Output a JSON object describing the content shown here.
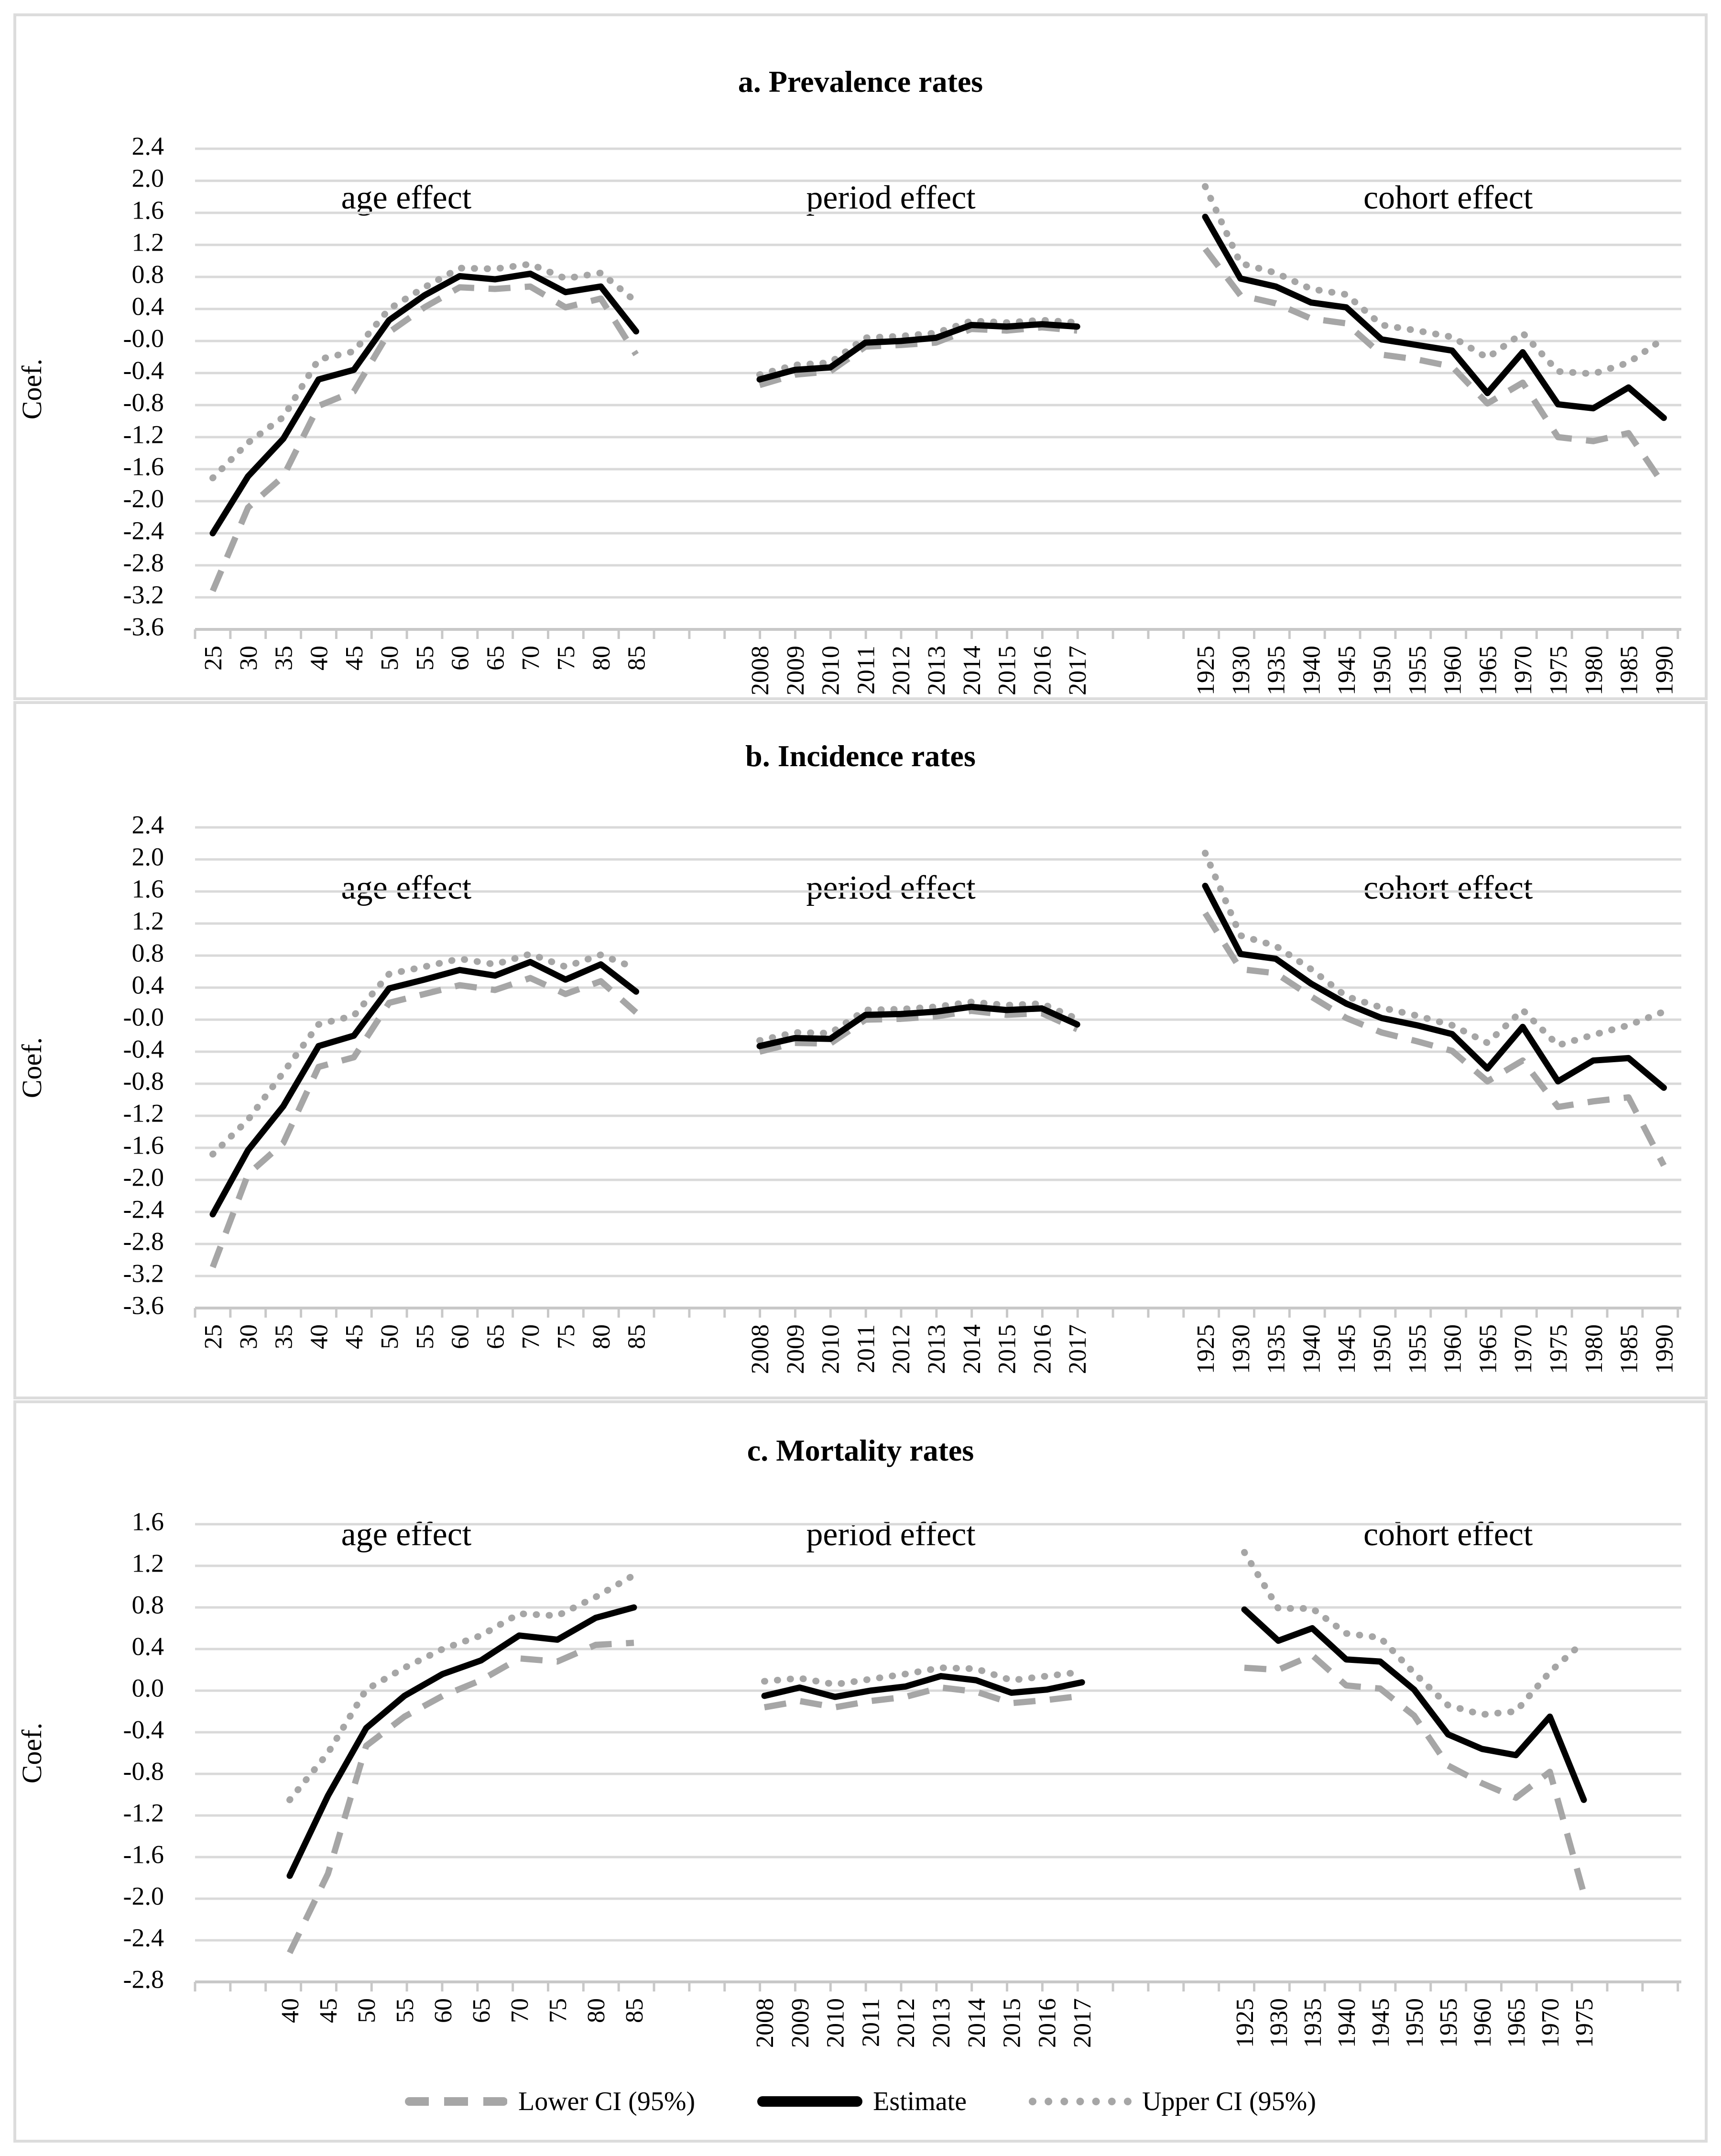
{
  "axis": {
    "ylabel": "Coef."
  },
  "colors": {
    "estimate": "#000000",
    "ci": "#a6a6a6",
    "gridline": "#d9d9d9",
    "axis_line": "#c8c8c8",
    "panel_border": "#dcdcdc",
    "background": "#ffffff"
  },
  "legend": {
    "items": [
      {
        "label": "Lower CI (95%)",
        "style": "dashed",
        "color": "#a6a6a6"
      },
      {
        "label": "Estimate",
        "style": "solid",
        "color": "#000000"
      },
      {
        "label": "Upper CI (95%)",
        "style": "dotted",
        "color": "#a6a6a6"
      }
    ]
  },
  "chart_data": [
    {
      "type": "line",
      "title": "a. Prevalence rates",
      "ylabel": "Coef.",
      "ylim": [
        -3.6,
        2.4
      ],
      "ytick_step": 0.4,
      "grid": "horizontal",
      "legend_position": "none",
      "groups": [
        {
          "label": "age effect",
          "categories": [
            25,
            30,
            35,
            40,
            45,
            50,
            55,
            60,
            65,
            70,
            75,
            80,
            85
          ],
          "series": [
            {
              "name": "Lower CI (95%)",
              "values": [
                -3.12,
                -2.08,
                -1.69,
                -0.81,
                -0.63,
                0.11,
                0.42,
                0.67,
                0.65,
                0.68,
                0.42,
                0.53,
                -0.17
              ]
            },
            {
              "name": "Estimate",
              "values": [
                -2.4,
                -1.69,
                -1.22,
                -0.48,
                -0.36,
                0.26,
                0.57,
                0.81,
                0.77,
                0.84,
                0.61,
                0.68,
                0.12
              ]
            },
            {
              "name": "Upper CI (95%)",
              "values": [
                -1.71,
                -1.27,
                -0.95,
                -0.23,
                -0.13,
                0.4,
                0.67,
                0.91,
                0.9,
                0.96,
                0.78,
                0.85,
                0.49
              ]
            }
          ]
        },
        {
          "label": "period effect",
          "categories": [
            2008,
            2009,
            2010,
            2011,
            2012,
            2013,
            2014,
            2015,
            2016,
            2017
          ],
          "series": [
            {
              "name": "Lower CI (95%)",
              "values": [
                -0.55,
                -0.42,
                -0.38,
                -0.07,
                -0.05,
                -0.02,
                0.15,
                0.13,
                0.17,
                0.13
              ]
            },
            {
              "name": "Estimate",
              "values": [
                -0.48,
                -0.36,
                -0.33,
                -0.02,
                0.0,
                0.04,
                0.2,
                0.18,
                0.21,
                0.18
              ]
            },
            {
              "name": "Upper CI (95%)",
              "values": [
                -0.42,
                -0.3,
                -0.27,
                0.04,
                0.06,
                0.1,
                0.25,
                0.23,
                0.26,
                0.23
              ]
            }
          ]
        },
        {
          "label": "cohort effect",
          "categories": [
            1925,
            1930,
            1935,
            1940,
            1945,
            1950,
            1955,
            1960,
            1965,
            1970,
            1975,
            1980,
            1985,
            1990
          ],
          "series": [
            {
              "name": "Lower CI (95%)",
              "values": [
                1.15,
                0.57,
                0.47,
                0.28,
                0.22,
                -0.17,
                -0.23,
                -0.32,
                -0.78,
                -0.52,
                -1.2,
                -1.25,
                -1.15,
                -1.8
              ]
            },
            {
              "name": "Estimate",
              "values": [
                1.55,
                0.78,
                0.68,
                0.48,
                0.42,
                0.02,
                -0.05,
                -0.12,
                -0.65,
                -0.14,
                -0.79,
                -0.84,
                -0.58,
                -0.96
              ]
            },
            {
              "name": "Upper CI (95%)",
              "values": [
                1.93,
                0.97,
                0.85,
                0.65,
                0.58,
                0.2,
                0.13,
                0.05,
                -0.21,
                0.1,
                -0.38,
                -0.41,
                -0.27,
                0.03
              ]
            }
          ]
        }
      ]
    },
    {
      "type": "line",
      "title": "b. Incidence rates",
      "ylabel": "Coef.",
      "ylim": [
        -3.6,
        2.4
      ],
      "ytick_step": 0.4,
      "grid": "horizontal",
      "legend_position": "none",
      "groups": [
        {
          "label": "age effect",
          "categories": [
            25,
            30,
            35,
            40,
            45,
            50,
            55,
            60,
            65,
            70,
            75,
            80,
            85
          ],
          "series": [
            {
              "name": "Lower CI (95%)",
              "values": [
                -3.09,
                -1.93,
                -1.54,
                -0.59,
                -0.47,
                0.21,
                0.32,
                0.43,
                0.37,
                0.52,
                0.32,
                0.48,
                0.09
              ]
            },
            {
              "name": "Estimate",
              "values": [
                -2.43,
                -1.63,
                -1.08,
                -0.33,
                -0.2,
                0.39,
                0.5,
                0.62,
                0.55,
                0.72,
                0.5,
                0.69,
                0.35
              ]
            },
            {
              "name": "Upper CI (95%)",
              "values": [
                -1.68,
                -1.25,
                -0.66,
                -0.06,
                0.05,
                0.57,
                0.66,
                0.76,
                0.69,
                0.82,
                0.66,
                0.81,
                0.64
              ]
            }
          ]
        },
        {
          "label": "period effect",
          "categories": [
            2008,
            2009,
            2010,
            2011,
            2012,
            2013,
            2014,
            2015,
            2016,
            2017
          ],
          "series": [
            {
              "name": "Lower CI (95%)",
              "values": [
                -0.4,
                -0.29,
                -0.3,
                0.0,
                0.01,
                0.04,
                0.11,
                0.06,
                0.08,
                -0.12
              ]
            },
            {
              "name": "Estimate",
              "values": [
                -0.33,
                -0.23,
                -0.24,
                0.06,
                0.07,
                0.1,
                0.16,
                0.12,
                0.14,
                -0.06
              ]
            },
            {
              "name": "Upper CI (95%)",
              "values": [
                -0.26,
                -0.16,
                -0.17,
                0.12,
                0.13,
                0.16,
                0.22,
                0.18,
                0.2,
                0.01
              ]
            }
          ]
        },
        {
          "label": "cohort effect",
          "categories": [
            1925,
            1930,
            1935,
            1940,
            1945,
            1950,
            1955,
            1960,
            1965,
            1970,
            1975,
            1980,
            1985,
            1990
          ],
          "series": [
            {
              "name": "Lower CI (95%)",
              "values": [
                1.33,
                0.63,
                0.58,
                0.29,
                0.02,
                -0.16,
                -0.27,
                -0.39,
                -0.77,
                -0.51,
                -1.09,
                -1.02,
                -0.97,
                -1.82
              ]
            },
            {
              "name": "Estimate",
              "values": [
                1.67,
                0.82,
                0.76,
                0.45,
                0.2,
                0.02,
                -0.07,
                -0.18,
                -0.61,
                -0.09,
                -0.77,
                -0.51,
                -0.48,
                -0.85
              ]
            },
            {
              "name": "Upper CI (95%)",
              "values": [
                2.08,
                1.05,
                0.92,
                0.63,
                0.29,
                0.15,
                0.05,
                -0.07,
                -0.29,
                0.12,
                -0.32,
                -0.19,
                -0.07,
                0.1
              ]
            }
          ]
        }
      ]
    },
    {
      "type": "line",
      "title": "c. Mortality rates",
      "ylabel": "Coef.",
      "ylim": [
        -2.8,
        1.6
      ],
      "ytick_step": 0.4,
      "grid": "horizontal",
      "legend_position": "bottom",
      "groups": [
        {
          "label": "age effect",
          "categories": [
            40,
            45,
            50,
            55,
            60,
            65,
            70,
            75,
            80,
            85
          ],
          "series": [
            {
              "name": "Lower CI (95%)",
              "values": [
                -2.52,
                -1.76,
                -0.53,
                -0.25,
                -0.05,
                0.1,
                0.31,
                0.28,
                0.44,
                0.46
              ]
            },
            {
              "name": "Estimate",
              "values": [
                -1.78,
                -1.01,
                -0.36,
                -0.05,
                0.16,
                0.29,
                0.53,
                0.49,
                0.7,
                0.8
              ]
            },
            {
              "name": "Upper CI (95%)",
              "values": [
                -1.05,
                -0.6,
                0.01,
                0.22,
                0.4,
                0.53,
                0.74,
                0.72,
                0.9,
                1.11
              ]
            }
          ]
        },
        {
          "label": "period effect",
          "categories": [
            2008,
            2009,
            2010,
            2011,
            2012,
            2013,
            2014,
            2015,
            2016,
            2017
          ],
          "series": [
            {
              "name": "Lower CI (95%)",
              "values": [
                -0.16,
                -0.1,
                -0.16,
                -0.1,
                -0.06,
                0.03,
                -0.01,
                -0.12,
                -0.09,
                -0.05
              ]
            },
            {
              "name": "Estimate",
              "values": [
                -0.05,
                0.03,
                -0.06,
                0.0,
                0.04,
                0.14,
                0.1,
                -0.02,
                0.01,
                0.08
              ]
            },
            {
              "name": "Upper CI (95%)",
              "values": [
                0.09,
                0.12,
                0.06,
                0.11,
                0.16,
                0.22,
                0.21,
                0.1,
                0.14,
                0.18
              ]
            }
          ]
        },
        {
          "label": "cohort effect",
          "categories": [
            1925,
            1930,
            1935,
            1940,
            1945,
            1950,
            1955,
            1960,
            1965,
            1970,
            1975
          ],
          "series": [
            {
              "name": "Lower CI (95%)",
              "values": [
                0.22,
                0.2,
                0.34,
                0.05,
                0.02,
                -0.24,
                -0.72,
                -0.89,
                -1.03,
                -0.78,
                -1.95
              ]
            },
            {
              "name": "Estimate",
              "values": [
                0.78,
                0.48,
                0.6,
                0.3,
                0.28,
                0.01,
                -0.42,
                -0.56,
                -0.62,
                -0.25,
                -1.05
              ]
            },
            {
              "name": "Upper CI (95%)",
              "values": [
                1.33,
                0.79,
                0.79,
                0.55,
                0.51,
                0.17,
                -0.14,
                -0.23,
                -0.2,
                0.18,
                0.47
              ]
            }
          ]
        }
      ]
    }
  ]
}
